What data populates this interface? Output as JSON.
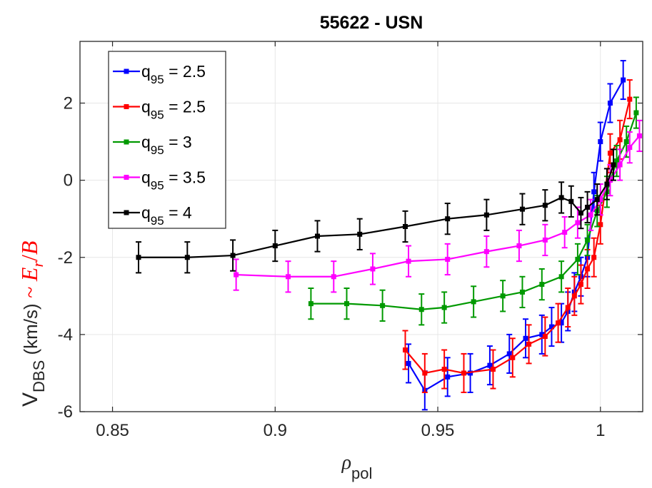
{
  "chart_data": {
    "type": "line",
    "title": "55622 - USN",
    "xlabel": {
      "main": "ρ",
      "sub": "pol"
    },
    "ylabel": {
      "main": "V",
      "sub": "DBS",
      "unit": " (km/s)",
      "approx": " ~ ",
      "er_main": "E",
      "er_sub": "r",
      "over": "/",
      "b": "B"
    },
    "xlim": [
      0.84,
      1.013
    ],
    "ylim": [
      -6,
      3.6
    ],
    "xticks": [
      0.85,
      0.9,
      0.95,
      1
    ],
    "xtick_labels": [
      "0.85",
      "0.9",
      "0.95",
      "1"
    ],
    "yticks": [
      -6,
      -4,
      -2,
      0,
      2
    ],
    "ytick_labels": [
      "-6",
      "-4",
      "-2",
      "0",
      "2"
    ],
    "grid": true,
    "legend": {
      "position": "top-left"
    },
    "series": [
      {
        "legend": {
          "main": "q",
          "sub": "95",
          "rest": " = 2.5"
        },
        "color": "#0000ff",
        "x": [
          0.941,
          0.946,
          0.953,
          0.96,
          0.966,
          0.972,
          0.977,
          0.982,
          0.985,
          0.988,
          0.99,
          0.992,
          0.994,
          0.996,
          0.998,
          1.0,
          1.003,
          1.007
        ],
        "y": [
          -4.75,
          -5.45,
          -5.1,
          -5.0,
          -4.8,
          -4.5,
          -4.1,
          -4.0,
          -3.8,
          -3.7,
          -3.4,
          -2.9,
          -2.5,
          -2.0,
          -0.3,
          1.0,
          2.0,
          2.6
        ],
        "err": 0.5
      },
      {
        "legend": {
          "main": "q",
          "sub": "95",
          "rest": " = 2.5"
        },
        "color": "#ff0000",
        "x": [
          0.94,
          0.946,
          0.952,
          0.958,
          0.967,
          0.973,
          0.978,
          0.983,
          0.987,
          0.99,
          0.992,
          0.994,
          0.996,
          0.998,
          1.0,
          1.003,
          1.006,
          1.009
        ],
        "y": [
          -4.4,
          -5.0,
          -4.9,
          -5.0,
          -4.9,
          -4.6,
          -4.25,
          -4.05,
          -3.7,
          -3.3,
          -3.0,
          -2.7,
          -2.3,
          -2.0,
          -1.15,
          0.7,
          1.05,
          2.1
        ],
        "err": 0.5
      },
      {
        "legend": {
          "main": "q",
          "sub": "95",
          "rest": " = 3"
        },
        "color": "#009900",
        "x": [
          0.911,
          0.922,
          0.933,
          0.945,
          0.952,
          0.961,
          0.97,
          0.976,
          0.982,
          0.988,
          0.993,
          0.996,
          0.999,
          1.002,
          1.005,
          1.008,
          1.011
        ],
        "y": [
          -3.2,
          -3.2,
          -3.25,
          -3.35,
          -3.3,
          -3.15,
          -3.0,
          -2.9,
          -2.7,
          -2.5,
          -2.05,
          -1.55,
          -0.8,
          -0.3,
          0.5,
          1.0,
          1.75
        ],
        "err": 0.4
      },
      {
        "legend": {
          "main": "q",
          "sub": "95",
          "rest": " = 3.5"
        },
        "color": "#ff00ff",
        "x": [
          0.888,
          0.904,
          0.918,
          0.93,
          0.941,
          0.953,
          0.965,
          0.975,
          0.983,
          0.989,
          0.993,
          0.997,
          1.0,
          1.003,
          1.006,
          1.009,
          1.012
        ],
        "y": [
          -2.45,
          -2.5,
          -2.5,
          -2.3,
          -2.1,
          -2.05,
          -1.85,
          -1.7,
          -1.55,
          -1.35,
          -1.1,
          -0.9,
          -0.5,
          0.0,
          0.4,
          0.85,
          1.15
        ],
        "err": 0.4
      },
      {
        "legend": {
          "main": "q",
          "sub": "95",
          "rest": " = 4"
        },
        "color": "#000000",
        "x": [
          0.858,
          0.873,
          0.887,
          0.9,
          0.913,
          0.926,
          0.94,
          0.953,
          0.965,
          0.976,
          0.983,
          0.988,
          0.991,
          0.994,
          0.996,
          0.999,
          1.002,
          1.004
        ],
        "y": [
          -2.0,
          -2.0,
          -1.95,
          -1.7,
          -1.45,
          -1.4,
          -1.2,
          -1.0,
          -0.9,
          -0.75,
          -0.65,
          -0.45,
          -0.55,
          -0.85,
          -0.7,
          -0.5,
          -0.1,
          0.4
        ],
        "err": 0.4
      }
    ]
  }
}
